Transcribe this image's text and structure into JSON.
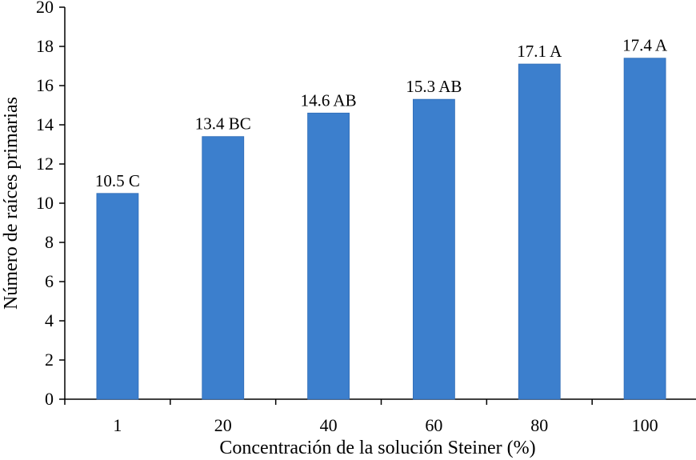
{
  "chart_data": {
    "type": "bar",
    "categories": [
      "1",
      "20",
      "40",
      "60",
      "80",
      "100"
    ],
    "values": [
      10.5,
      13.4,
      14.6,
      15.3,
      17.1,
      17.4
    ],
    "data_labels": [
      "10.5 C",
      "13.4 BC",
      "14.6 AB",
      "15.3 AB",
      "17.1 A",
      "17.4 A"
    ],
    "xlabel": "Concentración de la solución Steiner (%)",
    "ylabel": "Número de raíces primarias",
    "ylim": [
      0,
      20
    ],
    "yticks": [
      "0",
      "2",
      "4",
      "6",
      "8",
      "10",
      "12",
      "14",
      "16",
      "18",
      "20"
    ],
    "grid": false,
    "legend": "none",
    "bar_color": "#3c7fcd"
  }
}
